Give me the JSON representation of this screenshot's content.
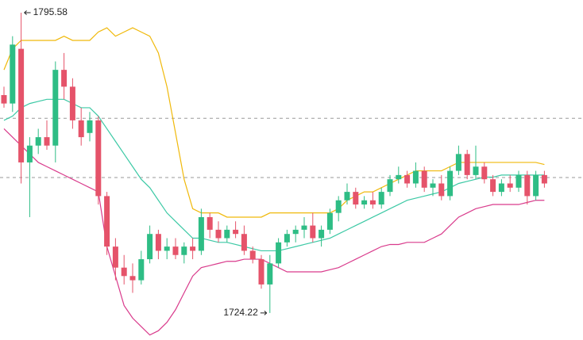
{
  "chart_data": {
    "type": "candlestick",
    "ylim": [
      1717.8,
      1798.6
    ],
    "up_color": "#2ebd85",
    "down_color": "#e5536a",
    "hlines": [
      1770.5,
      1756.4
    ],
    "ohlc": [
      [
        1776,
        1778,
        1773,
        1774
      ],
      [
        1774,
        1790,
        1772,
        1788
      ],
      [
        1787,
        1795.58,
        1755,
        1760
      ],
      [
        1760,
        1766,
        1747,
        1764
      ],
      [
        1764,
        1768,
        1762,
        1766
      ],
      [
        1766,
        1770,
        1763,
        1764
      ],
      [
        1764,
        1784,
        1760,
        1782
      ],
      [
        1782,
        1786,
        1775,
        1778
      ],
      [
        1778,
        1780,
        1768,
        1770
      ],
      [
        1770,
        1773,
        1764,
        1766
      ],
      [
        1767,
        1772,
        1765,
        1770
      ],
      [
        1770,
        1771,
        1750,
        1752
      ],
      [
        1752,
        1753,
        1738,
        1740
      ],
      [
        1740,
        1742,
        1732,
        1735
      ],
      [
        1735,
        1738,
        1731,
        1733
      ],
      [
        1733,
        1736,
        1729,
        1732
      ],
      [
        1732,
        1739,
        1731,
        1737
      ],
      [
        1737,
        1745,
        1736,
        1743
      ],
      [
        1743,
        1744,
        1737,
        1739
      ],
      [
        1739,
        1742,
        1737,
        1740
      ],
      [
        1740,
        1742,
        1737,
        1738
      ],
      [
        1738,
        1741,
        1736,
        1740
      ],
      [
        1740,
        1742,
        1737,
        1739
      ],
      [
        1739,
        1749,
        1738,
        1747
      ],
      [
        1747,
        1748,
        1742,
        1744
      ],
      [
        1744,
        1746,
        1741,
        1742
      ],
      [
        1742,
        1745,
        1741,
        1744
      ],
      [
        1744,
        1746,
        1742,
        1743
      ],
      [
        1743,
        1745,
        1738,
        1739
      ],
      [
        1739,
        1740,
        1736,
        1737
      ],
      [
        1737,
        1738,
        1730,
        1731
      ],
      [
        1731,
        1738,
        1724.22,
        1736
      ],
      [
        1736,
        1742,
        1735,
        1741
      ],
      [
        1741,
        1744,
        1740,
        1743
      ],
      [
        1743,
        1745,
        1741,
        1744
      ],
      [
        1744,
        1747,
        1742,
        1745
      ],
      [
        1745,
        1748,
        1741,
        1742
      ],
      [
        1742,
        1745,
        1740,
        1744
      ],
      [
        1744,
        1749,
        1743,
        1748
      ],
      [
        1748,
        1752,
        1746,
        1751
      ],
      [
        1751,
        1755,
        1750,
        1753
      ],
      [
        1753,
        1754,
        1749,
        1750
      ],
      [
        1750,
        1752,
        1749,
        1751
      ],
      [
        1751,
        1753,
        1749,
        1750
      ],
      [
        1750,
        1754,
        1749,
        1753
      ],
      [
        1753,
        1757,
        1752,
        1756
      ],
      [
        1756,
        1759,
        1755,
        1757
      ],
      [
        1757,
        1758,
        1754,
        1755
      ],
      [
        1755,
        1760,
        1754,
        1758
      ],
      [
        1758,
        1759,
        1753,
        1754
      ],
      [
        1754,
        1756,
        1752,
        1755
      ],
      [
        1755,
        1757,
        1751,
        1752
      ],
      [
        1752,
        1759,
        1751,
        1758
      ],
      [
        1758,
        1764,
        1757,
        1762
      ],
      [
        1762,
        1763,
        1756,
        1757
      ],
      [
        1757,
        1764,
        1756,
        1759
      ],
      [
        1759,
        1760,
        1755,
        1756
      ],
      [
        1756,
        1757,
        1752,
        1753
      ],
      [
        1753,
        1756,
        1752,
        1755
      ],
      [
        1755,
        1757,
        1753,
        1754
      ],
      [
        1754,
        1758,
        1753,
        1757
      ],
      [
        1757,
        1758,
        1750,
        1752
      ],
      [
        1752,
        1758,
        1751,
        1757
      ],
      [
        1757,
        1758,
        1754,
        1755
      ]
    ],
    "bands": [
      {
        "color": "#f0b90b",
        "values": [
          1782,
          1787,
          1789,
          1789,
          1789,
          1789,
          1789,
          1790,
          1789,
          1789,
          1789,
          1791,
          1792,
          1790,
          1791,
          1792,
          1791,
          1790,
          1786,
          1778,
          1767,
          1756,
          1749,
          1748,
          1748,
          1748,
          1747,
          1747,
          1747,
          1747,
          1747,
          1748,
          1748,
          1748,
          1748,
          1748,
          1748,
          1748,
          1748,
          1749,
          1751,
          1752,
          1753,
          1753,
          1754,
          1755,
          1756,
          1757,
          1758,
          1758,
          1758,
          1758,
          1759,
          1760,
          1760,
          1760,
          1760,
          1760,
          1760,
          1760,
          1760,
          1760,
          1760,
          1759.5
        ]
      },
      {
        "color": "#3cc9a5",
        "values": [
          1770,
          1771,
          1773,
          1774,
          1774.5,
          1775,
          1775,
          1775,
          1774,
          1773,
          1773,
          1771,
          1768,
          1765,
          1762,
          1759,
          1756,
          1754,
          1751,
          1748,
          1746,
          1744,
          1742,
          1742,
          1741.5,
          1741,
          1741,
          1740.5,
          1740,
          1739.5,
          1739,
          1739,
          1739,
          1739.5,
          1740,
          1740.5,
          1741,
          1741.5,
          1742,
          1743,
          1744,
          1745,
          1746,
          1747,
          1748,
          1749,
          1750,
          1751,
          1751.5,
          1752,
          1752.5,
          1753,
          1754,
          1755,
          1755.5,
          1756,
          1756.5,
          1756.5,
          1757,
          1757,
          1757,
          1757,
          1757,
          1757
        ]
      },
      {
        "color": "#d93b8c",
        "values": [
          1768,
          1766,
          1764,
          1762,
          1760,
          1759,
          1758,
          1757,
          1756,
          1755,
          1754,
          1753,
          1740,
          1733,
          1726,
          1723,
          1721,
          1719,
          1720,
          1722,
          1725,
          1729,
          1733,
          1735,
          1735.5,
          1736,
          1736.5,
          1736.5,
          1737,
          1737,
          1737,
          1736,
          1735,
          1734,
          1734,
          1734,
          1734,
          1734,
          1734.5,
          1735,
          1736,
          1737,
          1738,
          1739,
          1740,
          1740.5,
          1740.5,
          1741,
          1741,
          1741,
          1742,
          1743,
          1745,
          1747,
          1748,
          1749,
          1749.5,
          1750,
          1750,
          1750,
          1750,
          1750.5,
          1751,
          1751
        ]
      }
    ]
  }
}
